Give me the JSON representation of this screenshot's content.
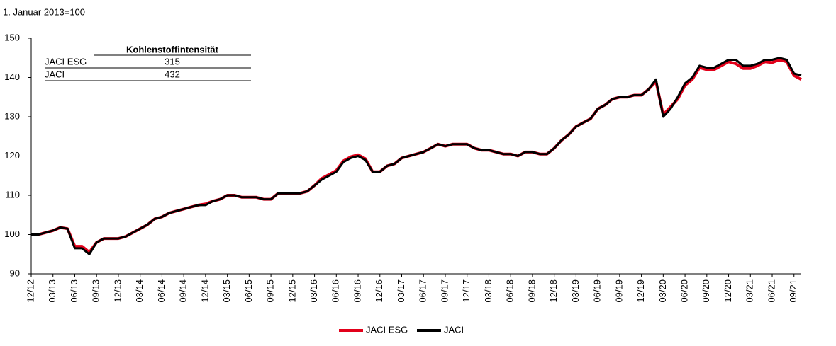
{
  "chart_data": {
    "type": "line",
    "subtitle": "1. Januar 2013=100",
    "categories": [
      "12/12",
      null,
      null,
      "03/13",
      null,
      null,
      "06/13",
      null,
      null,
      "09/13",
      null,
      null,
      "12/13",
      null,
      null,
      "03/14",
      null,
      null,
      "06/14",
      null,
      null,
      "09/14",
      null,
      null,
      "12/14",
      null,
      null,
      "03/15",
      null,
      null,
      "06/15",
      null,
      null,
      "09/15",
      null,
      null,
      "12/15",
      null,
      null,
      "03/16",
      null,
      null,
      "06/16",
      null,
      null,
      "09/16",
      null,
      null,
      "12/16",
      null,
      null,
      "03/17",
      null,
      null,
      "06/17",
      null,
      null,
      "09/17",
      null,
      null,
      "12/17",
      null,
      null,
      "03/18",
      null,
      null,
      "06/18",
      null,
      null,
      "09/18",
      null,
      null,
      "12/18",
      null,
      null,
      "03/19",
      null,
      null,
      "06/19",
      null,
      null,
      "09/19",
      null,
      null,
      "12/19",
      null,
      null,
      "03/20",
      null,
      null,
      "06/20",
      null,
      null,
      "09/20",
      null,
      null,
      "12/20",
      null,
      null,
      "03/21",
      null,
      null,
      "06/21",
      null,
      null,
      "09/21",
      null
    ],
    "series": [
      {
        "name": "JACI ESG",
        "color": "#e2001a",
        "values": [
          100,
          100,
          100.5,
          101,
          101.8,
          101.5,
          97,
          97,
          95.5,
          98,
          99,
          99,
          99,
          99.5,
          100.5,
          101.5,
          102.5,
          104,
          104.5,
          105.5,
          106,
          106.5,
          107,
          107.5,
          107.8,
          108.5,
          109,
          110,
          110,
          109.5,
          109.5,
          109.5,
          109,
          109,
          110.5,
          110.5,
          110.5,
          110.5,
          111,
          112.5,
          114.3,
          115.3,
          116.3,
          118.8,
          119.8,
          120.3,
          119.3,
          116,
          116,
          117.5,
          118,
          119.5,
          120,
          120.5,
          121,
          122,
          123,
          122.5,
          123,
          123,
          123,
          122,
          121.5,
          121.5,
          121,
          120.5,
          120.5,
          120,
          121,
          121,
          120.5,
          120.5,
          122,
          124,
          125.5,
          127.5,
          128.5,
          129.5,
          132,
          133,
          134.5,
          135,
          135,
          135.5,
          135.5,
          137,
          139,
          130.5,
          132.5,
          134.5,
          138,
          139.5,
          142.5,
          142,
          142,
          143,
          144,
          143.5,
          142.3,
          142.3,
          143,
          144,
          143.8,
          144.5,
          144,
          140.5,
          139.5
        ]
      },
      {
        "name": "JACI",
        "color": "#000000",
        "values": [
          100,
          100,
          100.5,
          101,
          101.8,
          101.5,
          96.5,
          96.5,
          95,
          98,
          99,
          99,
          99,
          99.5,
          100.5,
          101.5,
          102.5,
          104,
          104.5,
          105.5,
          106,
          106.5,
          107,
          107.5,
          107.5,
          108.5,
          109,
          110,
          110,
          109.5,
          109.5,
          109.5,
          109,
          109,
          110.5,
          110.5,
          110.5,
          110.5,
          111,
          112.5,
          114,
          115,
          116,
          118.5,
          119.5,
          120,
          119,
          116,
          116,
          117.5,
          118,
          119.5,
          120,
          120.5,
          121,
          122,
          123,
          122.5,
          123,
          123,
          123,
          122,
          121.5,
          121.5,
          121,
          120.5,
          120.5,
          120,
          121,
          121,
          120.5,
          120.5,
          122,
          124,
          125.5,
          127.5,
          128.5,
          129.5,
          132,
          133,
          134.5,
          135,
          135,
          135.5,
          135.5,
          137,
          139.5,
          130,
          132,
          135,
          138.5,
          140,
          143,
          142.5,
          142.5,
          143.5,
          144.5,
          144.5,
          143,
          143,
          143.5,
          144.5,
          144.5,
          145,
          144.5,
          141,
          140.5
        ]
      }
    ],
    "ylim": [
      90,
      150
    ],
    "yticks": [
      90,
      100,
      110,
      120,
      130,
      140,
      150
    ],
    "grid": false,
    "legend": "bottom",
    "table": {
      "header": "Kohlenstoffintensität",
      "rows": [
        [
          "JACI ESG",
          315
        ],
        [
          "JACI",
          432
        ]
      ]
    }
  }
}
